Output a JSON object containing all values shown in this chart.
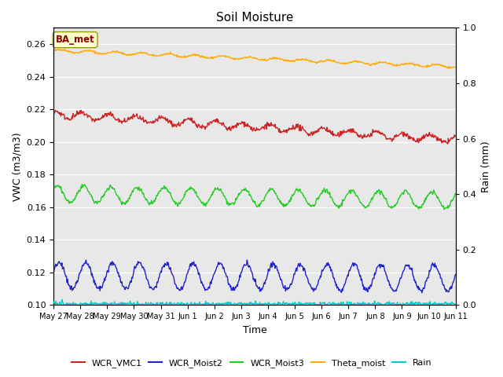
{
  "title": "Soil Moisture",
  "xlabel": "Time",
  "ylabel_left": "VWC (m3/m3)",
  "ylabel_right": "Rain (mm)",
  "annotation": "BA_met",
  "ylim_left": [
    0.1,
    0.27
  ],
  "ylim_right": [
    0.0,
    1.0
  ],
  "yticks_left": [
    0.1,
    0.12,
    0.14,
    0.16,
    0.18,
    0.2,
    0.22,
    0.24,
    0.26
  ],
  "yticks_right": [
    0.0,
    0.2,
    0.4,
    0.6,
    0.8,
    1.0
  ],
  "bg_outer": "#ffffff",
  "bg_plot": "#e8e8e8",
  "grid_color": "#ffffff",
  "series": {
    "WCR_VMC1": {
      "color": "#cc2222",
      "label": "WCR_VMC1"
    },
    "WCR_Moist2": {
      "color": "#2222cc",
      "label": "WCR_Moist2"
    },
    "WCR_Moist3": {
      "color": "#22cc22",
      "label": "WCR_Moist3"
    },
    "Theta_moist": {
      "color": "#ffaa00",
      "label": "Theta_moist"
    },
    "Rain": {
      "color": "#00cccc",
      "label": "Rain"
    }
  },
  "tick_labels": [
    "May 27",
    "May 28",
    "May 29",
    "May 30",
    "May 31",
    "Jun 1",
    "Jun 2",
    "Jun 3",
    "Jun 4",
    "Jun 5",
    "Jun 6",
    "Jun 7",
    "Jun 8",
    "Jun 9",
    "Jun 10",
    "Jun 11"
  ],
  "n_points": 720,
  "n_days": 15
}
